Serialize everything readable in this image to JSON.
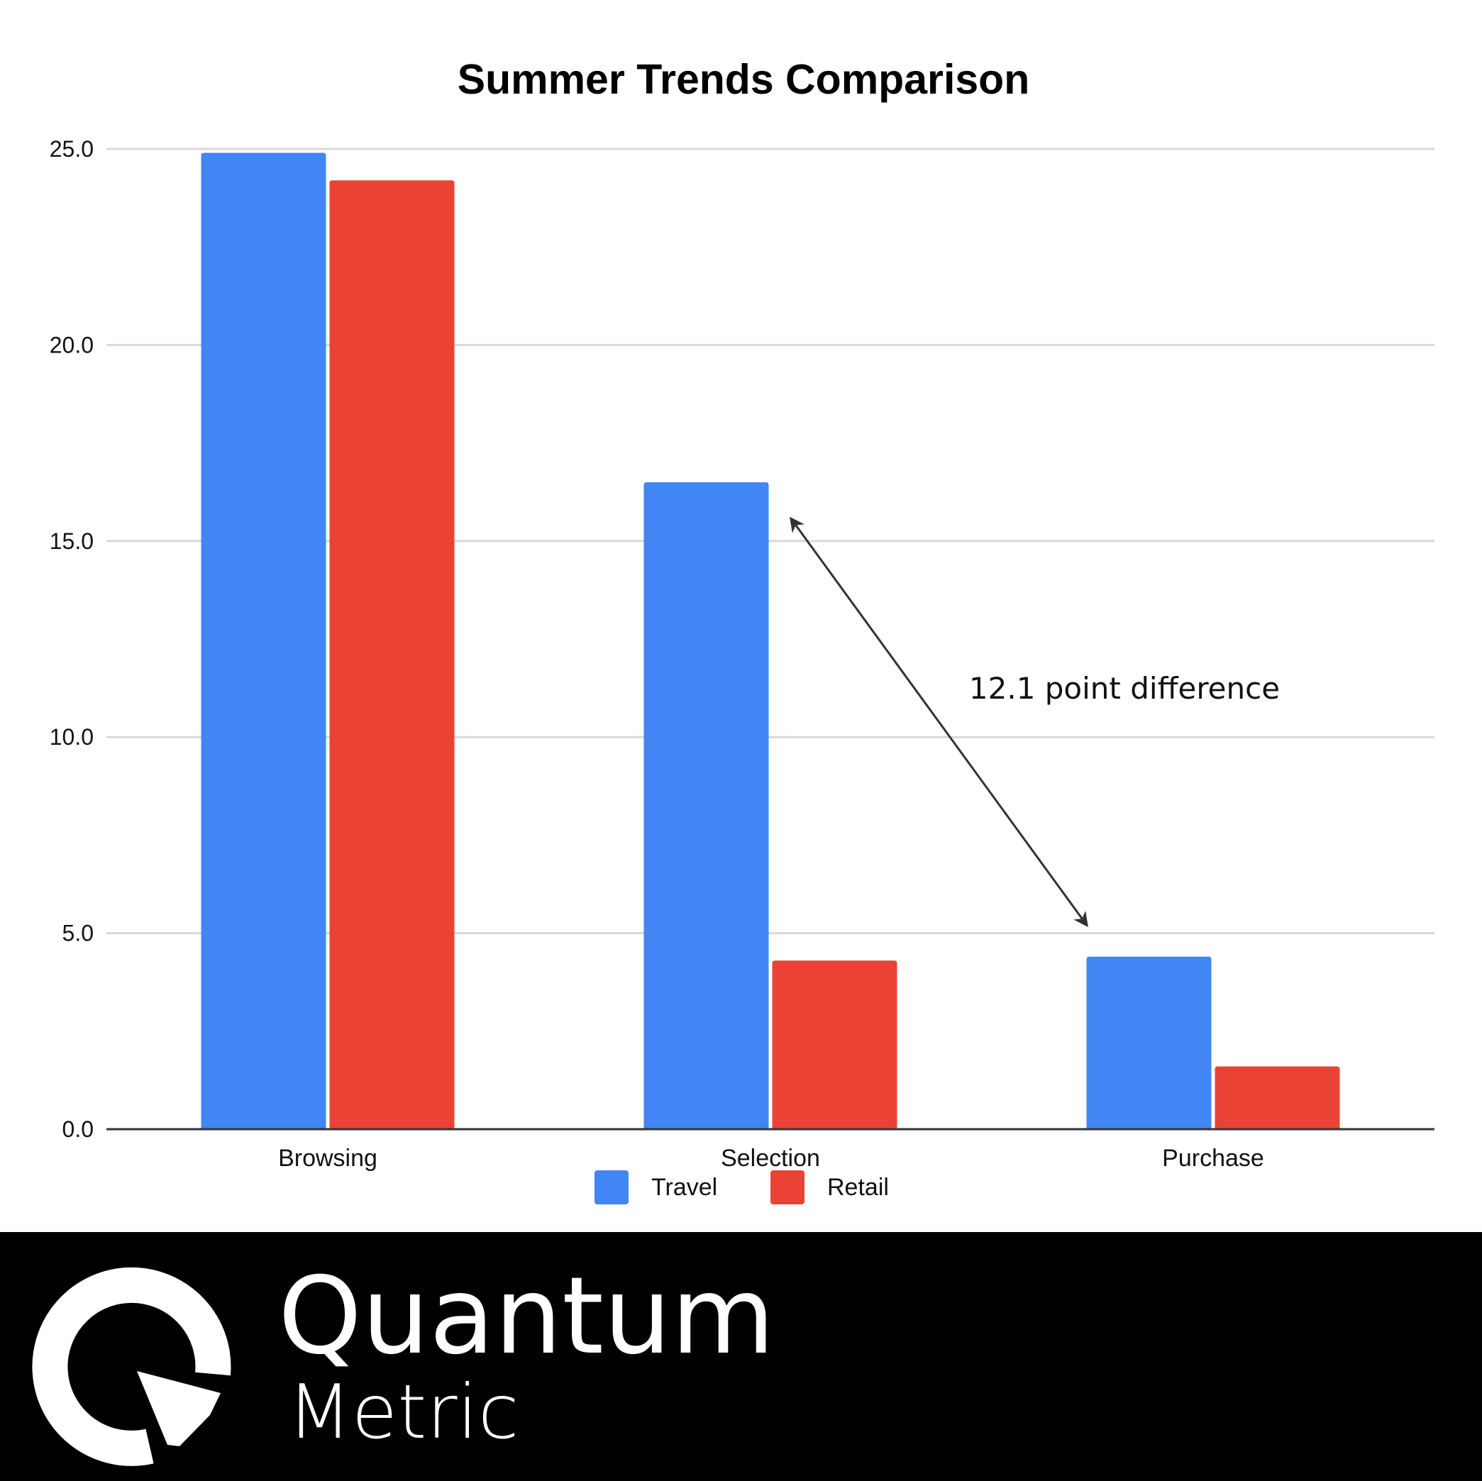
{
  "chart_data": {
    "type": "bar",
    "title": "Summer Trends Comparison",
    "xlabel": "",
    "ylabel": "",
    "categories": [
      "Browsing",
      "Selection",
      "Purchase"
    ],
    "series": [
      {
        "name": "Travel",
        "values": [
          24.9,
          16.5,
          4.4
        ],
        "color": "#4285f4"
      },
      {
        "name": "Retail",
        "values": [
          24.2,
          4.3,
          1.6
        ],
        "color": "#ea4335"
      }
    ],
    "ylim": [
      0,
      25
    ],
    "yticks": [
      "0.0",
      "5.0",
      "10.0",
      "15.0",
      "20.0",
      "25.0"
    ],
    "grid": true,
    "legend_position": "bottom",
    "annotations": [
      {
        "text": "12.1 point difference"
      }
    ]
  },
  "branding": {
    "logo_word_1": "Quantum",
    "logo_word_2": "Metric"
  },
  "colors": {
    "gridline": "#d9d9d9",
    "axis": "#333333",
    "arrow": "#333333",
    "footer_bg": "#000000",
    "logo": "#ffffff"
  },
  "icons": {
    "logo": "quantum-metric-q-logo"
  }
}
